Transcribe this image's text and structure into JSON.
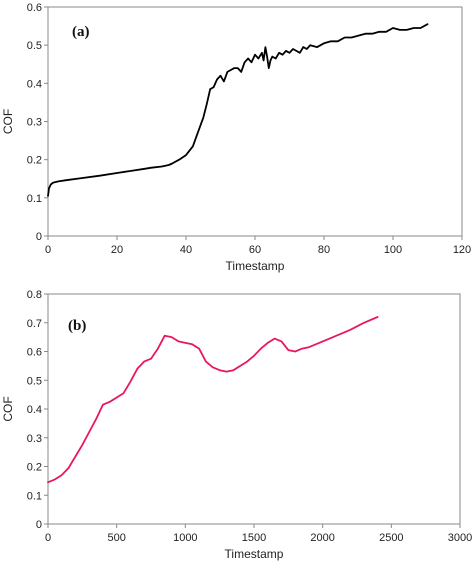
{
  "chart_data": [
    {
      "type": "line",
      "panel_label": "(a)",
      "xlabel": "Timestamp",
      "ylabel": "COF",
      "xlim": [
        0,
        120
      ],
      "ylim": [
        0,
        0.6
      ],
      "xticks": [
        0,
        20,
        40,
        60,
        80,
        100,
        120
      ],
      "yticks": [
        0,
        0.1,
        0.2,
        0.3,
        0.4,
        0.5,
        0.6
      ],
      "xtick_labels": [
        "0",
        "20",
        "40",
        "60",
        "80",
        "100",
        "120"
      ],
      "ytick_labels": [
        "0",
        "0.1",
        "0.2",
        "0.3",
        "0.4",
        "0.5",
        "0.6"
      ],
      "grid": false,
      "series": [
        {
          "color": "#000000",
          "x": [
            0,
            0.3,
            0.8,
            1.5,
            3,
            5,
            10,
            15,
            20,
            25,
            28,
            30,
            33,
            35,
            36,
            38,
            40,
            42,
            43,
            44,
            45,
            46,
            47,
            48,
            49,
            50,
            51,
            52,
            53,
            54,
            55,
            56,
            57,
            58,
            59,
            60,
            61,
            62,
            62.5,
            63,
            63.5,
            64,
            64.5,
            65,
            66,
            67,
            68,
            69,
            70,
            71,
            72,
            73,
            74,
            75,
            76,
            78,
            80,
            82,
            84,
            86,
            88,
            90,
            92,
            94,
            96,
            98,
            100,
            102,
            104,
            106,
            108,
            110
          ],
          "y": [
            0.105,
            0.125,
            0.135,
            0.14,
            0.143,
            0.146,
            0.152,
            0.158,
            0.165,
            0.172,
            0.176,
            0.179,
            0.182,
            0.186,
            0.19,
            0.2,
            0.212,
            0.235,
            0.26,
            0.285,
            0.31,
            0.345,
            0.385,
            0.39,
            0.41,
            0.42,
            0.405,
            0.43,
            0.435,
            0.44,
            0.44,
            0.43,
            0.455,
            0.465,
            0.455,
            0.475,
            0.465,
            0.48,
            0.46,
            0.495,
            0.47,
            0.44,
            0.46,
            0.47,
            0.465,
            0.48,
            0.475,
            0.485,
            0.48,
            0.49,
            0.485,
            0.48,
            0.495,
            0.49,
            0.5,
            0.495,
            0.505,
            0.51,
            0.51,
            0.52,
            0.52,
            0.525,
            0.53,
            0.53,
            0.535,
            0.535,
            0.545,
            0.54,
            0.54,
            0.545,
            0.545,
            0.555
          ]
        }
      ]
    },
    {
      "type": "line",
      "panel_label": "(b)",
      "xlabel": "Timestamp",
      "ylabel": "COF",
      "xlim": [
        0,
        3000
      ],
      "ylim": [
        0,
        0.8
      ],
      "xticks": [
        0,
        500,
        1000,
        1500,
        2000,
        2500,
        3000
      ],
      "yticks": [
        0,
        0.1,
        0.2,
        0.3,
        0.4,
        0.5,
        0.6,
        0.7,
        0.8
      ],
      "xtick_labels": [
        "0",
        "500",
        "1000",
        "1500",
        "2000",
        "2500",
        "3000"
      ],
      "ytick_labels": [
        "0",
        "0.1",
        "0.2",
        "0.3",
        "0.4",
        "0.5",
        "0.6",
        "0.7",
        "0.8"
      ],
      "grid": false,
      "series": [
        {
          "color": "#e8185a",
          "x": [
            0,
            50,
            100,
            150,
            200,
            250,
            300,
            350,
            400,
            450,
            500,
            550,
            600,
            650,
            700,
            750,
            800,
            850,
            900,
            950,
            1000,
            1050,
            1100,
            1150,
            1200,
            1250,
            1300,
            1350,
            1400,
            1450,
            1500,
            1550,
            1600,
            1650,
            1700,
            1750,
            1800,
            1850,
            1900,
            2000,
            2100,
            2200,
            2300,
            2400
          ],
          "y": [
            0.145,
            0.155,
            0.17,
            0.195,
            0.235,
            0.275,
            0.32,
            0.365,
            0.415,
            0.425,
            0.44,
            0.455,
            0.495,
            0.54,
            0.565,
            0.575,
            0.61,
            0.655,
            0.65,
            0.635,
            0.63,
            0.625,
            0.61,
            0.565,
            0.545,
            0.535,
            0.53,
            0.535,
            0.55,
            0.565,
            0.585,
            0.61,
            0.63,
            0.645,
            0.635,
            0.605,
            0.6,
            0.61,
            0.615,
            0.635,
            0.655,
            0.675,
            0.7,
            0.72
          ]
        }
      ]
    }
  ]
}
